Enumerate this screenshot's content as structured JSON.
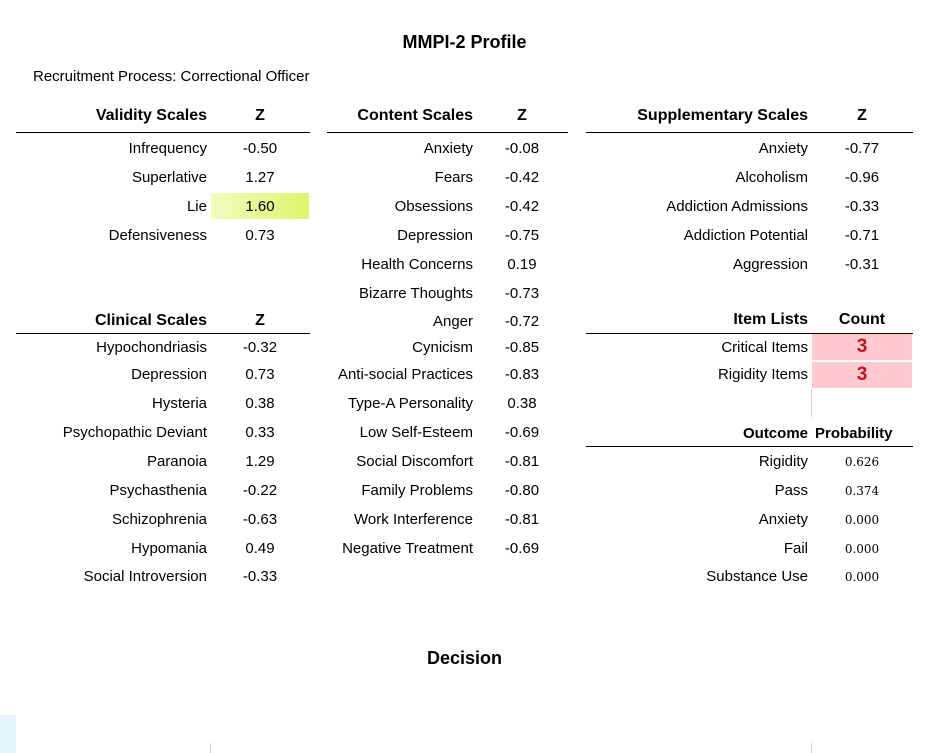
{
  "title": "MMPI-2 Profile",
  "subtitle": "Recruitment Process:  Correctional Officer",
  "validity": {
    "header": "Validity Scales",
    "z_header": "Z",
    "rows": [
      {
        "label": "Infrequency",
        "z": "-0.50"
      },
      {
        "label": "Superlative",
        "z": "1.27"
      },
      {
        "label": "Lie",
        "z": "1.60"
      },
      {
        "label": "Defensiveness",
        "z": "0.73"
      }
    ]
  },
  "clinical": {
    "header": "Clinical Scales",
    "z_header": "Z",
    "rows": [
      {
        "label": "Hypochondriasis",
        "z": "-0.32"
      },
      {
        "label": "Depression",
        "z": "0.73"
      },
      {
        "label": "Hysteria",
        "z": "0.38"
      },
      {
        "label": "Psychopathic Deviant",
        "z": "0.33"
      },
      {
        "label": "Paranoia",
        "z": "1.29"
      },
      {
        "label": "Psychasthenia",
        "z": "-0.22"
      },
      {
        "label": "Schizophrenia",
        "z": "-0.63"
      },
      {
        "label": "Hypomania",
        "z": "0.49"
      },
      {
        "label": "Social Introversion",
        "z": "-0.33"
      }
    ]
  },
  "content": {
    "header": "Content Scales",
    "z_header": "Z",
    "rows": [
      {
        "label": "Anxiety",
        "z": "-0.08"
      },
      {
        "label": "Fears",
        "z": "-0.42"
      },
      {
        "label": "Obsessions",
        "z": "-0.42"
      },
      {
        "label": "Depression",
        "z": "-0.75"
      },
      {
        "label": "Health Concerns",
        "z": "0.19"
      },
      {
        "label": "Bizarre Thoughts",
        "z": "-0.73"
      },
      {
        "label": "Anger",
        "z": "-0.72"
      },
      {
        "label": "Cynicism",
        "z": "-0.85"
      },
      {
        "label": "Anti-social Practices",
        "z": "-0.83"
      },
      {
        "label": "Type-A Personality",
        "z": "0.38"
      },
      {
        "label": "Low Self-Esteem",
        "z": "-0.69"
      },
      {
        "label": "Social Discomfort",
        "z": "-0.81"
      },
      {
        "label": "Family Problems",
        "z": "-0.80"
      },
      {
        "label": "Work Interference",
        "z": "-0.81"
      },
      {
        "label": "Negative Treatment",
        "z": "-0.69"
      }
    ]
  },
  "supplementary": {
    "header": "Supplementary Scales",
    "z_header": "Z",
    "rows": [
      {
        "label": "Anxiety",
        "z": "-0.77"
      },
      {
        "label": "Alcoholism",
        "z": "-0.96"
      },
      {
        "label": "Addiction Admissions",
        "z": "-0.33"
      },
      {
        "label": "Addiction Potential",
        "z": "-0.71"
      },
      {
        "label": "Aggression",
        "z": "-0.31"
      }
    ]
  },
  "item_lists": {
    "header": "Item Lists",
    "count_header": "Count",
    "rows": [
      {
        "label": "Critical Items",
        "count": "3"
      },
      {
        "label": "Rigidity Items",
        "count": "3"
      }
    ]
  },
  "outcome": {
    "header": "Outcome",
    "prob_header": "Probability",
    "rows": [
      {
        "label": "Rigidity",
        "p": "0.626"
      },
      {
        "label": "Pass",
        "p": "0.374"
      },
      {
        "label": "Anxiety",
        "p": "0.000"
      },
      {
        "label": "Fail",
        "p": "0.000"
      },
      {
        "label": "Substance Use",
        "p": "0.000"
      }
    ]
  },
  "decision_label": "Decision",
  "colors": {
    "highlight_lie": "#dff46b",
    "count_bg": "#ffc9cf",
    "count_text": "#c0141c"
  }
}
